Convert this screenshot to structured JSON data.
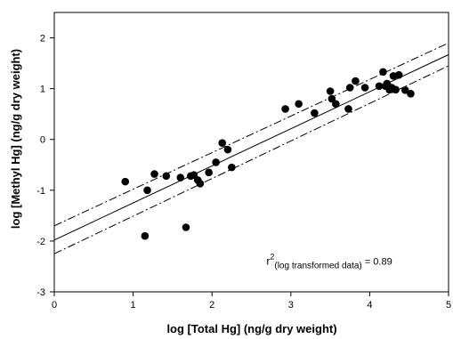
{
  "chart_data": {
    "type": "scatter",
    "xlabel": "log [Total Hg] (ng/g dry weight)",
    "ylabel": "log [Methyl Hg] (ng/g dry weight)",
    "xlim": [
      0,
      5
    ],
    "ylim": [
      -3,
      2.5
    ],
    "x_ticks": [
      "0",
      "1",
      "2",
      "3",
      "4",
      "5"
    ],
    "y_ticks": [
      "-3",
      "-2",
      "-1",
      "0",
      "1",
      "2"
    ],
    "grid": false,
    "points": [
      {
        "x": 0.9,
        "y": -0.83
      },
      {
        "x": 1.15,
        "y": -1.9
      },
      {
        "x": 1.18,
        "y": -1.0
      },
      {
        "x": 1.27,
        "y": -0.68
      },
      {
        "x": 1.42,
        "y": -0.72
      },
      {
        "x": 1.6,
        "y": -0.75
      },
      {
        "x": 1.67,
        "y": -1.73
      },
      {
        "x": 1.73,
        "y": -0.72
      },
      {
        "x": 1.77,
        "y": -0.7
      },
      {
        "x": 1.82,
        "y": -0.8
      },
      {
        "x": 1.85,
        "y": -0.87
      },
      {
        "x": 1.96,
        "y": -0.65
      },
      {
        "x": 2.05,
        "y": -0.45
      },
      {
        "x": 2.13,
        "y": -0.07
      },
      {
        "x": 2.2,
        "y": -0.2
      },
      {
        "x": 2.25,
        "y": -0.55
      },
      {
        "x": 2.93,
        "y": 0.6
      },
      {
        "x": 3.1,
        "y": 0.7
      },
      {
        "x": 3.3,
        "y": 0.52
      },
      {
        "x": 3.5,
        "y": 0.95
      },
      {
        "x": 3.52,
        "y": 0.8
      },
      {
        "x": 3.57,
        "y": 0.7
      },
      {
        "x": 3.73,
        "y": 0.6
      },
      {
        "x": 3.75,
        "y": 1.02
      },
      {
        "x": 3.82,
        "y": 1.15
      },
      {
        "x": 3.94,
        "y": 1.02
      },
      {
        "x": 4.12,
        "y": 1.05
      },
      {
        "x": 4.17,
        "y": 1.33
      },
      {
        "x": 4.2,
        "y": 1.05
      },
      {
        "x": 4.22,
        "y": 1.1
      },
      {
        "x": 4.25,
        "y": 0.98
      },
      {
        "x": 4.28,
        "y": 1.02
      },
      {
        "x": 4.3,
        "y": 1.25
      },
      {
        "x": 4.33,
        "y": 0.98
      },
      {
        "x": 4.37,
        "y": 1.27
      },
      {
        "x": 4.45,
        "y": 0.97
      },
      {
        "x": 4.52,
        "y": 0.9
      }
    ],
    "regression": {
      "x": [
        0,
        5
      ],
      "y": [
        -1.98,
        1.67
      ]
    },
    "confidence_band": {
      "upper": {
        "x": [
          0,
          5
        ],
        "y": [
          -1.7,
          1.9
        ]
      },
      "lower": {
        "x": [
          0,
          5
        ],
        "y": [
          -2.25,
          1.45
        ]
      }
    },
    "annotation": {
      "r": "r",
      "sup": "2",
      "sub": "(log transformed data)",
      "value": " = 0.89",
      "x": 2.6,
      "y": -2.4
    }
  }
}
